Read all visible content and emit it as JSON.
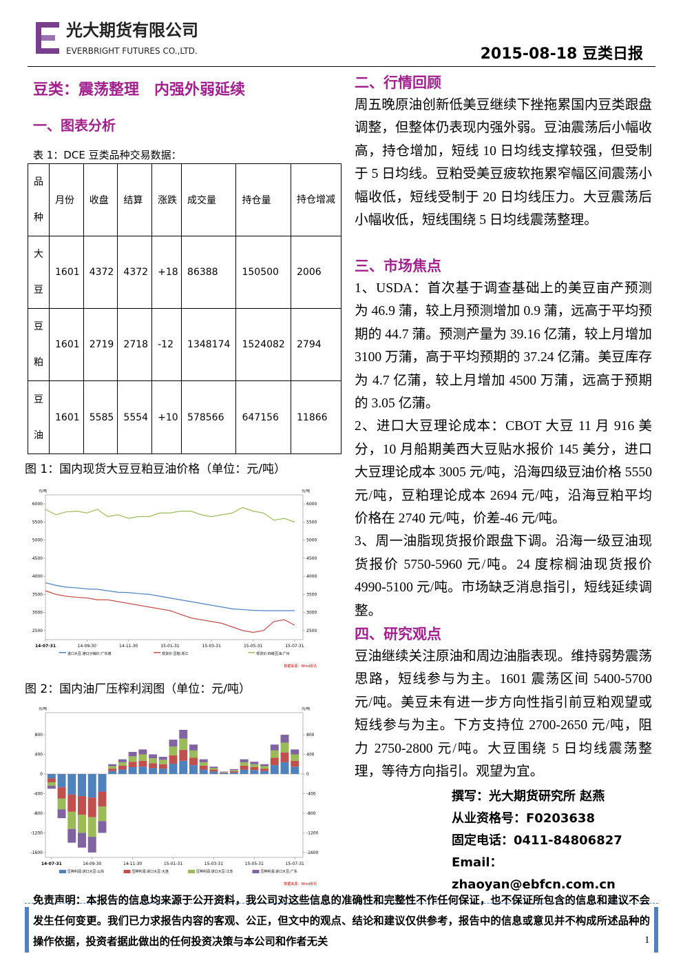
{
  "header": {
    "company_cn": "光大期货有限公司",
    "company_en": "EVERBRIGHT FUTURES CO.,LTD.",
    "date_title": "2015-08-18 豆类日报"
  },
  "left": {
    "title": "豆类：震荡整理　内强外弱延续",
    "section_title": "一、图表分析",
    "table_caption": "表 1：DCE 豆类品种交易数据：",
    "table": {
      "header": [
        "品种",
        "月份",
        "收盘",
        "结算",
        "涨跌",
        "成交量",
        "持仓量",
        "持仓增减"
      ],
      "rows": [
        [
          "大豆",
          "1601",
          "4372",
          "4372",
          "+18",
          "86388",
          "150500",
          "2006"
        ],
        [
          "豆粕",
          "1601",
          "2719",
          "2718",
          "-12",
          "1348174",
          "1524082",
          "2794"
        ],
        [
          "豆油",
          "1601",
          "5585",
          "5554",
          "+10",
          "578566",
          "647156",
          "11866"
        ]
      ]
    }
  },
  "figures": [
    {
      "caption": "图 1：国内现货大豆豆粕豆油价格（单位：元/吨）",
      "type": "line",
      "unit_left": "元/吨",
      "unit_right": "元/吨",
      "source": "数据来源：Wind资讯",
      "xlim": [
        0,
        12.4
      ],
      "xticks": [
        {
          "value": 0,
          "label": "14-07-31"
        },
        {
          "value": 2,
          "label": "14-09-30"
        },
        {
          "value": 4,
          "label": "14-11-30"
        },
        {
          "value": 6,
          "label": "15-01-31"
        },
        {
          "value": 8,
          "label": "15-03-31"
        },
        {
          "value": 10,
          "label": "15-05-31"
        },
        {
          "value": 12,
          "label": "15-07-31"
        }
      ],
      "ylim": [
        2250,
        6250
      ],
      "yticks": [
        2500,
        3000,
        3500,
        4000,
        4500,
        5000,
        5500,
        6000
      ],
      "y2lim": [
        2250,
        6250
      ],
      "y2ticks": [
        2500,
        3000,
        3500,
        4000,
        4500,
        5000,
        5500,
        6000
      ],
      "x": [
        0,
        0.5,
        1,
        1.5,
        2,
        2.5,
        3,
        3.5,
        4,
        4.5,
        5,
        5.5,
        6,
        6.5,
        7,
        7.5,
        8,
        8.5,
        9,
        9.5,
        10,
        10.5,
        11,
        11.5,
        12
      ],
      "series": [
        {
          "name": "进口大豆:港口分销价:广东港",
          "color": "#4f81bd",
          "values": [
            3820,
            3750,
            3700,
            3680,
            3650,
            3640,
            3600,
            3560,
            3550,
            3520,
            3500,
            3450,
            3400,
            3350,
            3300,
            3250,
            3200,
            3150,
            3100,
            3080,
            3060,
            3050,
            3050,
            3050,
            3050
          ]
        },
        {
          "name": "现货价:豆粕:浙江",
          "color": "#c0504d",
          "values": [
            3600,
            3500,
            3450,
            3420,
            3400,
            3350,
            3350,
            3300,
            3250,
            3200,
            3150,
            3100,
            3050,
            2950,
            2850,
            2800,
            2750,
            2700,
            2600,
            2500,
            2450,
            2500,
            2750,
            2800,
            2650
          ]
        },
        {
          "name": "现货价:四级豆油:广州",
          "color": "#9bbb59",
          "axis": "y2",
          "values": [
            5850,
            5700,
            5780,
            5800,
            5750,
            5850,
            5650,
            5700,
            5600,
            5650,
            5650,
            5750,
            5750,
            5800,
            5800,
            5700,
            5650,
            5700,
            5750,
            5900,
            5800,
            5750,
            5550,
            5600,
            5500
          ]
        }
      ]
    },
    {
      "caption": "图 2：国内油厂压榨利润图（单位：元/吨）",
      "type": "stacked-bar",
      "unit_left": "元/吨",
      "unit_right": "元/吨",
      "source": "数据来源：Wind资讯",
      "xlim": [
        -0.3,
        12.4
      ],
      "xticks": [
        {
          "value": 0,
          "label": "14-07-31"
        },
        {
          "value": 2,
          "label": "14-09-30"
        },
        {
          "value": 4,
          "label": "14-11-30"
        },
        {
          "value": 6,
          "label": "15-01-31"
        },
        {
          "value": 8,
          "label": "15-03-31"
        },
        {
          "value": 10,
          "label": "15-05-31"
        },
        {
          "value": 12,
          "label": "15-07-31"
        }
      ],
      "ylim": [
        -1700,
        1250
      ],
      "yticks": [
        -1600,
        -1200,
        -800,
        -400,
        0,
        400,
        800
      ],
      "y2lim": [
        -1700,
        1250
      ],
      "y2ticks": [
        -1600,
        -1200,
        -800,
        -400,
        0,
        400,
        800
      ],
      "x": [
        0,
        0.5,
        1,
        1.5,
        2,
        2.5,
        3,
        3.5,
        4,
        4.5,
        5,
        5.5,
        6,
        6.5,
        7,
        7.5,
        8,
        8.5,
        9,
        9.5,
        10,
        10.5,
        11,
        11.5,
        12
      ],
      "series": [
        {
          "name": "压榨利润:进口大豆:山东",
          "color": "#4f81bd",
          "values": [
            -90,
            -270,
            -420,
            -450,
            -480,
            -360,
            60,
            90,
            140,
            150,
            120,
            110,
            210,
            270,
            180,
            90,
            50,
            20,
            30,
            90,
            80,
            60,
            180,
            240,
            150
          ]
        },
        {
          "name": "压榨利润:进口大豆:大连",
          "color": "#c0504d",
          "values": [
            -80,
            -230,
            -350,
            -380,
            -400,
            -300,
            50,
            80,
            110,
            120,
            100,
            90,
            170,
            220,
            150,
            80,
            40,
            10,
            30,
            80,
            60,
            50,
            150,
            200,
            120
          ]
        },
        {
          "name": "压榨利润:进口大豆:江苏",
          "color": "#9bbb59",
          "values": [
            -70,
            -220,
            -350,
            -370,
            -400,
            -300,
            50,
            70,
            110,
            130,
            100,
            90,
            180,
            230,
            150,
            70,
            30,
            10,
            20,
            70,
            60,
            50,
            150,
            200,
            130
          ]
        },
        {
          "name": "压榨利润:进口大豆:广东",
          "color": "#8064a2",
          "values": [
            -60,
            -180,
            -280,
            -300,
            -320,
            -240,
            40,
            60,
            90,
            100,
            80,
            60,
            140,
            180,
            120,
            60,
            30,
            10,
            20,
            60,
            50,
            40,
            120,
            160,
            100
          ]
        }
      ]
    }
  ],
  "right": {
    "review_title": "二、行情回顾",
    "review_text": "周五晚原油创新低美豆继续下挫拖累国内豆类跟盘调整，但整体仍表现内强外弱。豆油震荡后小幅收高，持仓增加，短线 10 日均线支撑较强，但受制于 5 日均线。豆粕受美豆疲软拖累窄幅区间震荡小幅收低，短线受制于 20 日均线压力。大豆震荡后小幅收低，短线围绕 5 日均线震荡整理。",
    "focus_title": "三、市场焦点",
    "focus_items": [
      "1、USDA：首次基于调查基础上的美豆亩产预测为 46.9 蒲，较上月预测增加 0.9 蒲，远高于平均预期的 44.7 蒲。预测产量为 39.16 亿蒲，较上月增加 3100 万蒲，高于平均预期的 37.24 亿蒲。美豆库存为 4.7 亿蒲，较上月增加 4500 万蒲，远高于预期的 3.05 亿蒲。",
      "2、进口大豆理论成本：CBOT 大豆 11 月 916 美分，10 月船期美西大豆贴水报价 145 美分，进口大豆理论成本 3005 元/吨，沿海四级豆油价格 5550 元/吨，豆粕理论成本 2694 元/吨，沿海豆粕平均价格在 2740 元/吨，价差-46 元/吨。",
      "3、周一油脂现货报价跟盘下调。沿海一级豆油现货报价 5750-5960 元/吨。24 度棕榈油现货报价 4990-5100 元/吨。市场缺乏消息指引，短线延续调整。"
    ],
    "view_title": "四、研究观点",
    "view_text": "豆油继续关注原油和周边油脂表现。维持弱势震荡思路，短线参与为主。1601 震荡区间 5400-5700 元/吨。美豆未有进一步方向性指引前豆粕观望或短线参与为主。下方支持位 2700-2650 元/吨，阻力 2750-2800 元/吨。大豆围绕 5 日均线震荡整理，等待方向指引。观望为宜。",
    "author": [
      "撰写：光大期货研究所 赵燕",
      "从业资格号：F0203638",
      "固定电话：0411-84806827",
      "Email：zhaoyan@ebfcn.com.cn"
    ]
  },
  "footer": {
    "disclaimer": "免责声明：本报告的信息均来源于公开资料，我公司对这些信息的准确性和完整性不作任何保证，也不保证所包含的信息和建议不会发生任何变更。我们已力求报告内容的客观、公正，但文中的观点、结论和建议仅供参考，报告中的信息或意见并不构成所述品种的操作依据，投资者据此做出的任何投资决策与本公司和作者无关",
    "page": "1"
  }
}
